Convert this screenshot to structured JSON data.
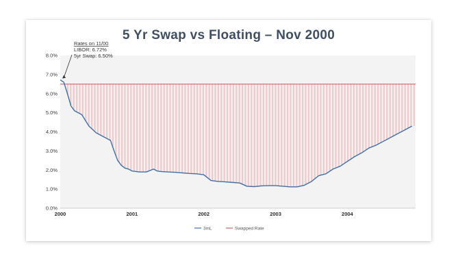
{
  "chart_data": {
    "type": "line",
    "title": "5 Yr Swap vs Floating – Nov 2000",
    "xlabel": "",
    "ylabel": "",
    "xlim": [
      2000.0,
      2004.95
    ],
    "ylim": [
      0,
      8
    ],
    "yticks": [
      "0.0%",
      "1.0%",
      "2.0%",
      "3.0%",
      "4.0%",
      "5.0%",
      "6.0%",
      "7.0%",
      "8.0%"
    ],
    "xticks": [
      {
        "value": 2000,
        "label": "2000"
      },
      {
        "value": 2001,
        "label": "2001"
      },
      {
        "value": 2002,
        "label": "2002"
      },
      {
        "value": 2003,
        "label": "2003"
      },
      {
        "value": 2004,
        "label": "2004"
      }
    ],
    "series": [
      {
        "name": "3mL",
        "color": "#3d6ea8",
        "x": [
          2000.0,
          2000.05,
          2000.1,
          2000.15,
          2000.2,
          2000.25,
          2000.3,
          2000.4,
          2000.5,
          2000.6,
          2000.7,
          2000.75,
          2000.8,
          2000.85,
          2000.9,
          2000.95,
          2001.0,
          2001.1,
          2001.2,
          2001.3,
          2001.35,
          2001.4,
          2001.5,
          2001.6,
          2001.7,
          2001.8,
          2001.9,
          2002.0,
          2002.1,
          2002.2,
          2002.3,
          2002.4,
          2002.5,
          2002.6,
          2002.7,
          2002.8,
          2002.9,
          2003.0,
          2003.1,
          2003.2,
          2003.3,
          2003.4,
          2003.5,
          2003.6,
          2003.7,
          2003.8,
          2003.9,
          2004.0,
          2004.1,
          2004.2,
          2004.3,
          2004.4,
          2004.5,
          2004.6,
          2004.7,
          2004.8,
          2004.9
        ],
        "values": [
          6.72,
          6.6,
          6.0,
          5.35,
          5.1,
          5.0,
          4.9,
          4.3,
          3.95,
          3.75,
          3.55,
          3.0,
          2.5,
          2.25,
          2.1,
          2.05,
          1.95,
          1.9,
          1.9,
          2.05,
          1.95,
          1.92,
          1.9,
          1.88,
          1.85,
          1.82,
          1.8,
          1.75,
          1.45,
          1.4,
          1.38,
          1.35,
          1.32,
          1.15,
          1.13,
          1.17,
          1.18,
          1.18,
          1.15,
          1.12,
          1.12,
          1.2,
          1.4,
          1.7,
          1.8,
          2.05,
          2.2,
          2.45,
          2.7,
          2.9,
          3.15,
          3.3,
          3.5,
          3.7,
          3.9,
          4.1,
          4.3
        ]
      },
      {
        "name": "Swapped Rate",
        "color": "#c46a6a",
        "x": [
          2000.0,
          2004.95
        ],
        "values": [
          6.5,
          6.5
        ]
      }
    ],
    "annotation": {
      "heading": "Rates on 11/00",
      "line1": "LIBOR:   6.72%",
      "line2": "5yr Swap: 6.50%",
      "arrow_at": {
        "x": 2000.02,
        "y": 6.72
      }
    },
    "legend": {
      "position": "bottom-center"
    },
    "grid": false
  }
}
